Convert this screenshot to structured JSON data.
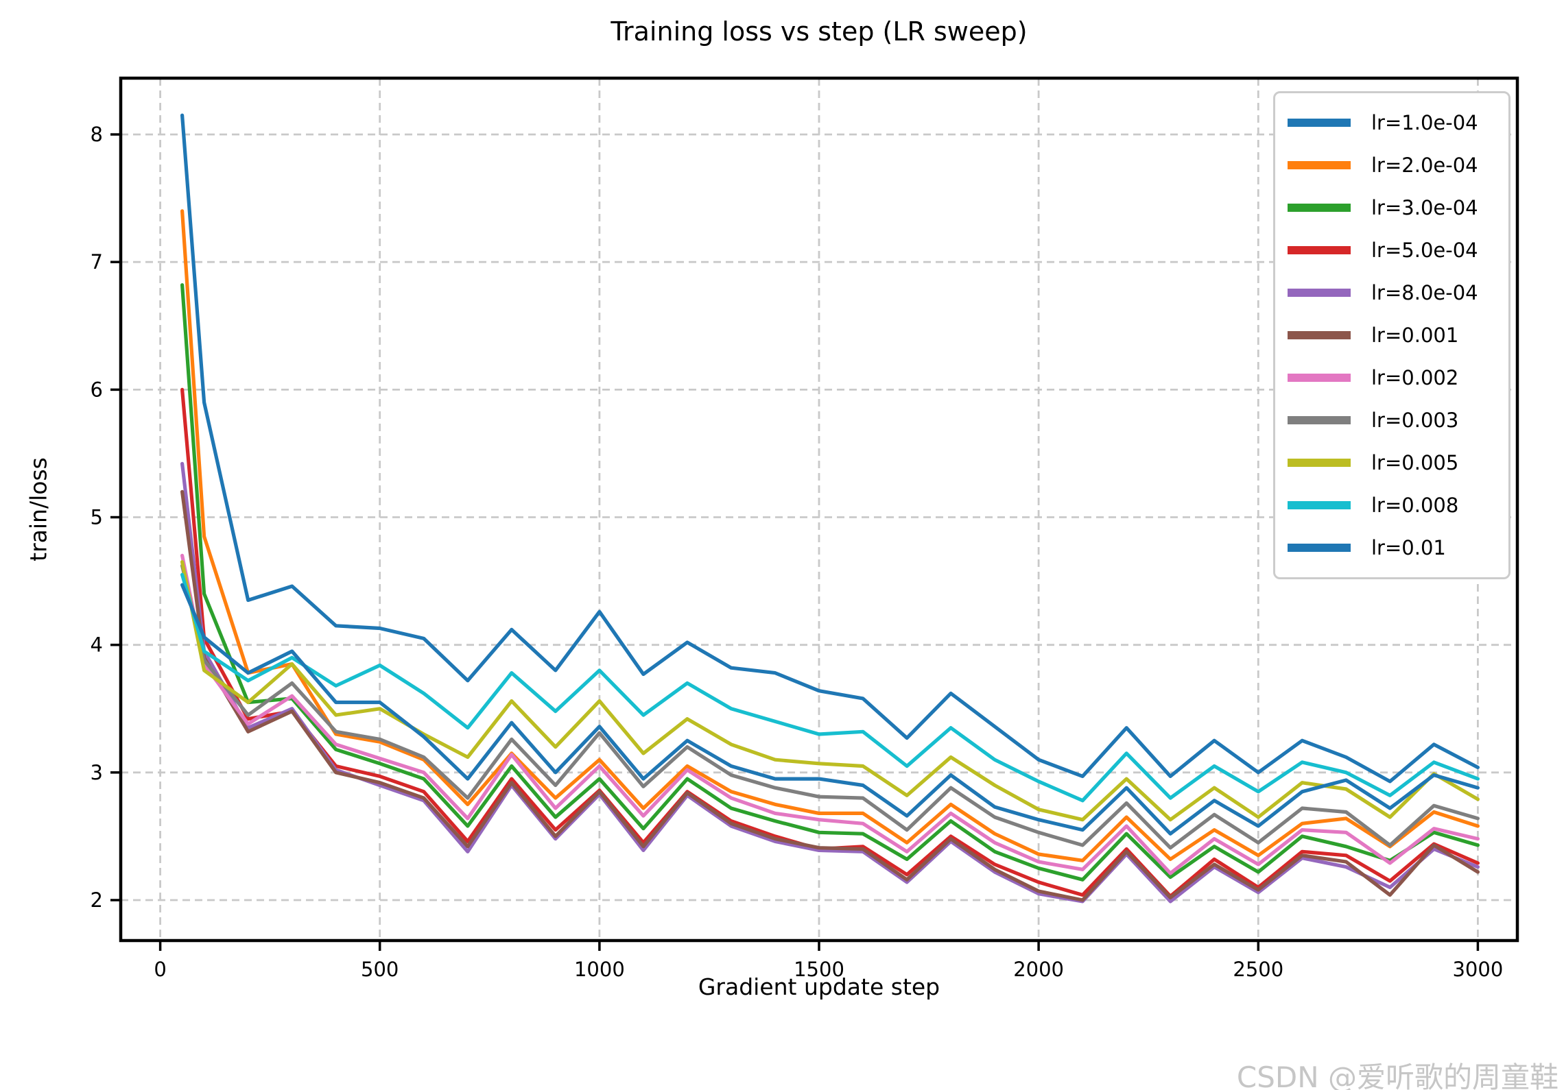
{
  "figure": {
    "background": "#ffffff",
    "frame_color": "#000000",
    "grid_color": "#c9c9c9"
  },
  "chart_data": {
    "type": "line",
    "title": "Training loss vs step (LR sweep)",
    "xlabel": "Gradient update step",
    "ylabel": "train/loss",
    "xlim": [
      -90,
      3090
    ],
    "ylim": [
      1.683,
      8.441
    ],
    "xticks": [
      0,
      500,
      1000,
      1500,
      2000,
      2500,
      3000
    ],
    "yticks": [
      2,
      3,
      4,
      5,
      6,
      7,
      8
    ],
    "grid": {
      "visible": true,
      "style": "dashed"
    },
    "legend_position": "upper right",
    "x": [
      50,
      100,
      200,
      300,
      400,
      500,
      600,
      700,
      800,
      900,
      1000,
      1100,
      1200,
      1300,
      1400,
      1500,
      1600,
      1700,
      1800,
      1900,
      2000,
      2100,
      2200,
      2300,
      2400,
      2500,
      2600,
      2700,
      2800,
      2900,
      3000
    ],
    "series": [
      {
        "name": "lr=1.0e-04",
        "color": "#1f77b4",
        "values": [
          8.15,
          5.9,
          4.35,
          4.46,
          4.15,
          4.13,
          4.05,
          3.72,
          4.12,
          3.8,
          4.26,
          3.77,
          4.02,
          3.82,
          3.78,
          3.64,
          3.58,
          3.27,
          3.62,
          3.36,
          3.1,
          2.97,
          3.35,
          2.97,
          3.25,
          3.0,
          3.25,
          3.12,
          2.93,
          3.22,
          3.04
        ]
      },
      {
        "name": "lr=2.0e-04",
        "color": "#ff7f0e",
        "values": [
          7.4,
          4.85,
          3.78,
          3.85,
          3.3,
          3.24,
          3.1,
          2.75,
          3.15,
          2.8,
          3.1,
          2.72,
          3.05,
          2.85,
          2.75,
          2.68,
          2.68,
          2.45,
          2.75,
          2.52,
          2.36,
          2.31,
          2.65,
          2.32,
          2.55,
          2.35,
          2.6,
          2.64,
          2.42,
          2.69,
          2.58
        ]
      },
      {
        "name": "lr=3.0e-04",
        "color": "#2ca02c",
        "values": [
          6.82,
          4.4,
          3.55,
          3.58,
          3.18,
          3.07,
          2.95,
          2.58,
          3.05,
          2.65,
          2.95,
          2.56,
          2.95,
          2.72,
          2.62,
          2.53,
          2.52,
          2.32,
          2.62,
          2.38,
          2.25,
          2.16,
          2.52,
          2.18,
          2.42,
          2.22,
          2.5,
          2.42,
          2.31,
          2.53,
          2.43
        ]
      },
      {
        "name": "lr=5.0e-04",
        "color": "#d62728",
        "values": [
          6.0,
          4.05,
          3.42,
          3.48,
          3.05,
          2.97,
          2.85,
          2.46,
          2.95,
          2.55,
          2.86,
          2.45,
          2.85,
          2.62,
          2.5,
          2.4,
          2.42,
          2.2,
          2.5,
          2.28,
          2.14,
          2.04,
          2.4,
          2.03,
          2.32,
          2.1,
          2.38,
          2.35,
          2.15,
          2.44,
          2.29
        ]
      },
      {
        "name": "lr=8.0e-04",
        "color": "#9467bd",
        "values": [
          5.42,
          3.95,
          3.35,
          3.5,
          3.02,
          2.9,
          2.78,
          2.38,
          2.9,
          2.48,
          2.83,
          2.39,
          2.82,
          2.58,
          2.46,
          2.39,
          2.38,
          2.14,
          2.46,
          2.22,
          2.05,
          1.99,
          2.36,
          1.99,
          2.26,
          2.06,
          2.33,
          2.26,
          2.1,
          2.4,
          2.26
        ]
      },
      {
        "name": "lr=0.001",
        "color": "#8c564b",
        "values": [
          5.2,
          3.9,
          3.32,
          3.48,
          3.0,
          2.92,
          2.8,
          2.42,
          2.92,
          2.5,
          2.85,
          2.42,
          2.84,
          2.6,
          2.48,
          2.41,
          2.4,
          2.16,
          2.48,
          2.24,
          2.07,
          2.0,
          2.38,
          2.02,
          2.28,
          2.08,
          2.35,
          2.3,
          2.04,
          2.43,
          2.22
        ]
      },
      {
        "name": "lr=0.002",
        "color": "#e377c2",
        "values": [
          4.7,
          3.85,
          3.38,
          3.6,
          3.22,
          3.11,
          3.0,
          2.64,
          3.14,
          2.72,
          3.05,
          2.66,
          3.02,
          2.8,
          2.68,
          2.63,
          2.6,
          2.38,
          2.68,
          2.45,
          2.3,
          2.24,
          2.58,
          2.21,
          2.48,
          2.28,
          2.55,
          2.53,
          2.29,
          2.56,
          2.48
        ]
      },
      {
        "name": "lr=0.003",
        "color": "#7f7f7f",
        "values": [
          4.62,
          3.88,
          3.45,
          3.7,
          3.32,
          3.26,
          3.12,
          2.8,
          3.26,
          2.9,
          3.31,
          2.89,
          3.2,
          2.98,
          2.88,
          2.81,
          2.8,
          2.55,
          2.88,
          2.65,
          2.53,
          2.43,
          2.76,
          2.41,
          2.67,
          2.45,
          2.72,
          2.69,
          2.43,
          2.74,
          2.64
        ]
      },
      {
        "name": "lr=0.005",
        "color": "#bcbd22",
        "values": [
          4.65,
          3.8,
          3.55,
          3.85,
          3.45,
          3.5,
          3.3,
          3.12,
          3.56,
          3.2,
          3.56,
          3.15,
          3.42,
          3.22,
          3.1,
          3.07,
          3.05,
          2.82,
          3.12,
          2.9,
          2.71,
          2.63,
          2.95,
          2.63,
          2.88,
          2.65,
          2.92,
          2.87,
          2.65,
          2.99,
          2.79
        ]
      },
      {
        "name": "lr=0.008",
        "color": "#17becf",
        "values": [
          4.55,
          3.95,
          3.72,
          3.9,
          3.68,
          3.84,
          3.62,
          3.35,
          3.78,
          3.48,
          3.8,
          3.45,
          3.7,
          3.5,
          3.4,
          3.3,
          3.32,
          3.05,
          3.35,
          3.1,
          2.93,
          2.78,
          3.15,
          2.8,
          3.05,
          2.85,
          3.08,
          3.0,
          2.82,
          3.08,
          2.95
        ]
      },
      {
        "name": "lr=0.01",
        "color": "#1f77b4",
        "values": [
          4.47,
          4.06,
          3.78,
          3.95,
          3.55,
          3.55,
          3.28,
          2.95,
          3.39,
          3.0,
          3.36,
          2.95,
          3.25,
          3.05,
          2.95,
          2.95,
          2.9,
          2.66,
          2.98,
          2.73,
          2.63,
          2.55,
          2.88,
          2.52,
          2.78,
          2.58,
          2.85,
          2.94,
          2.72,
          2.98,
          2.88
        ]
      }
    ]
  },
  "watermark": {
    "text": "CSDN @爱听歌的周童鞋",
    "color": "#c6c6c6"
  }
}
